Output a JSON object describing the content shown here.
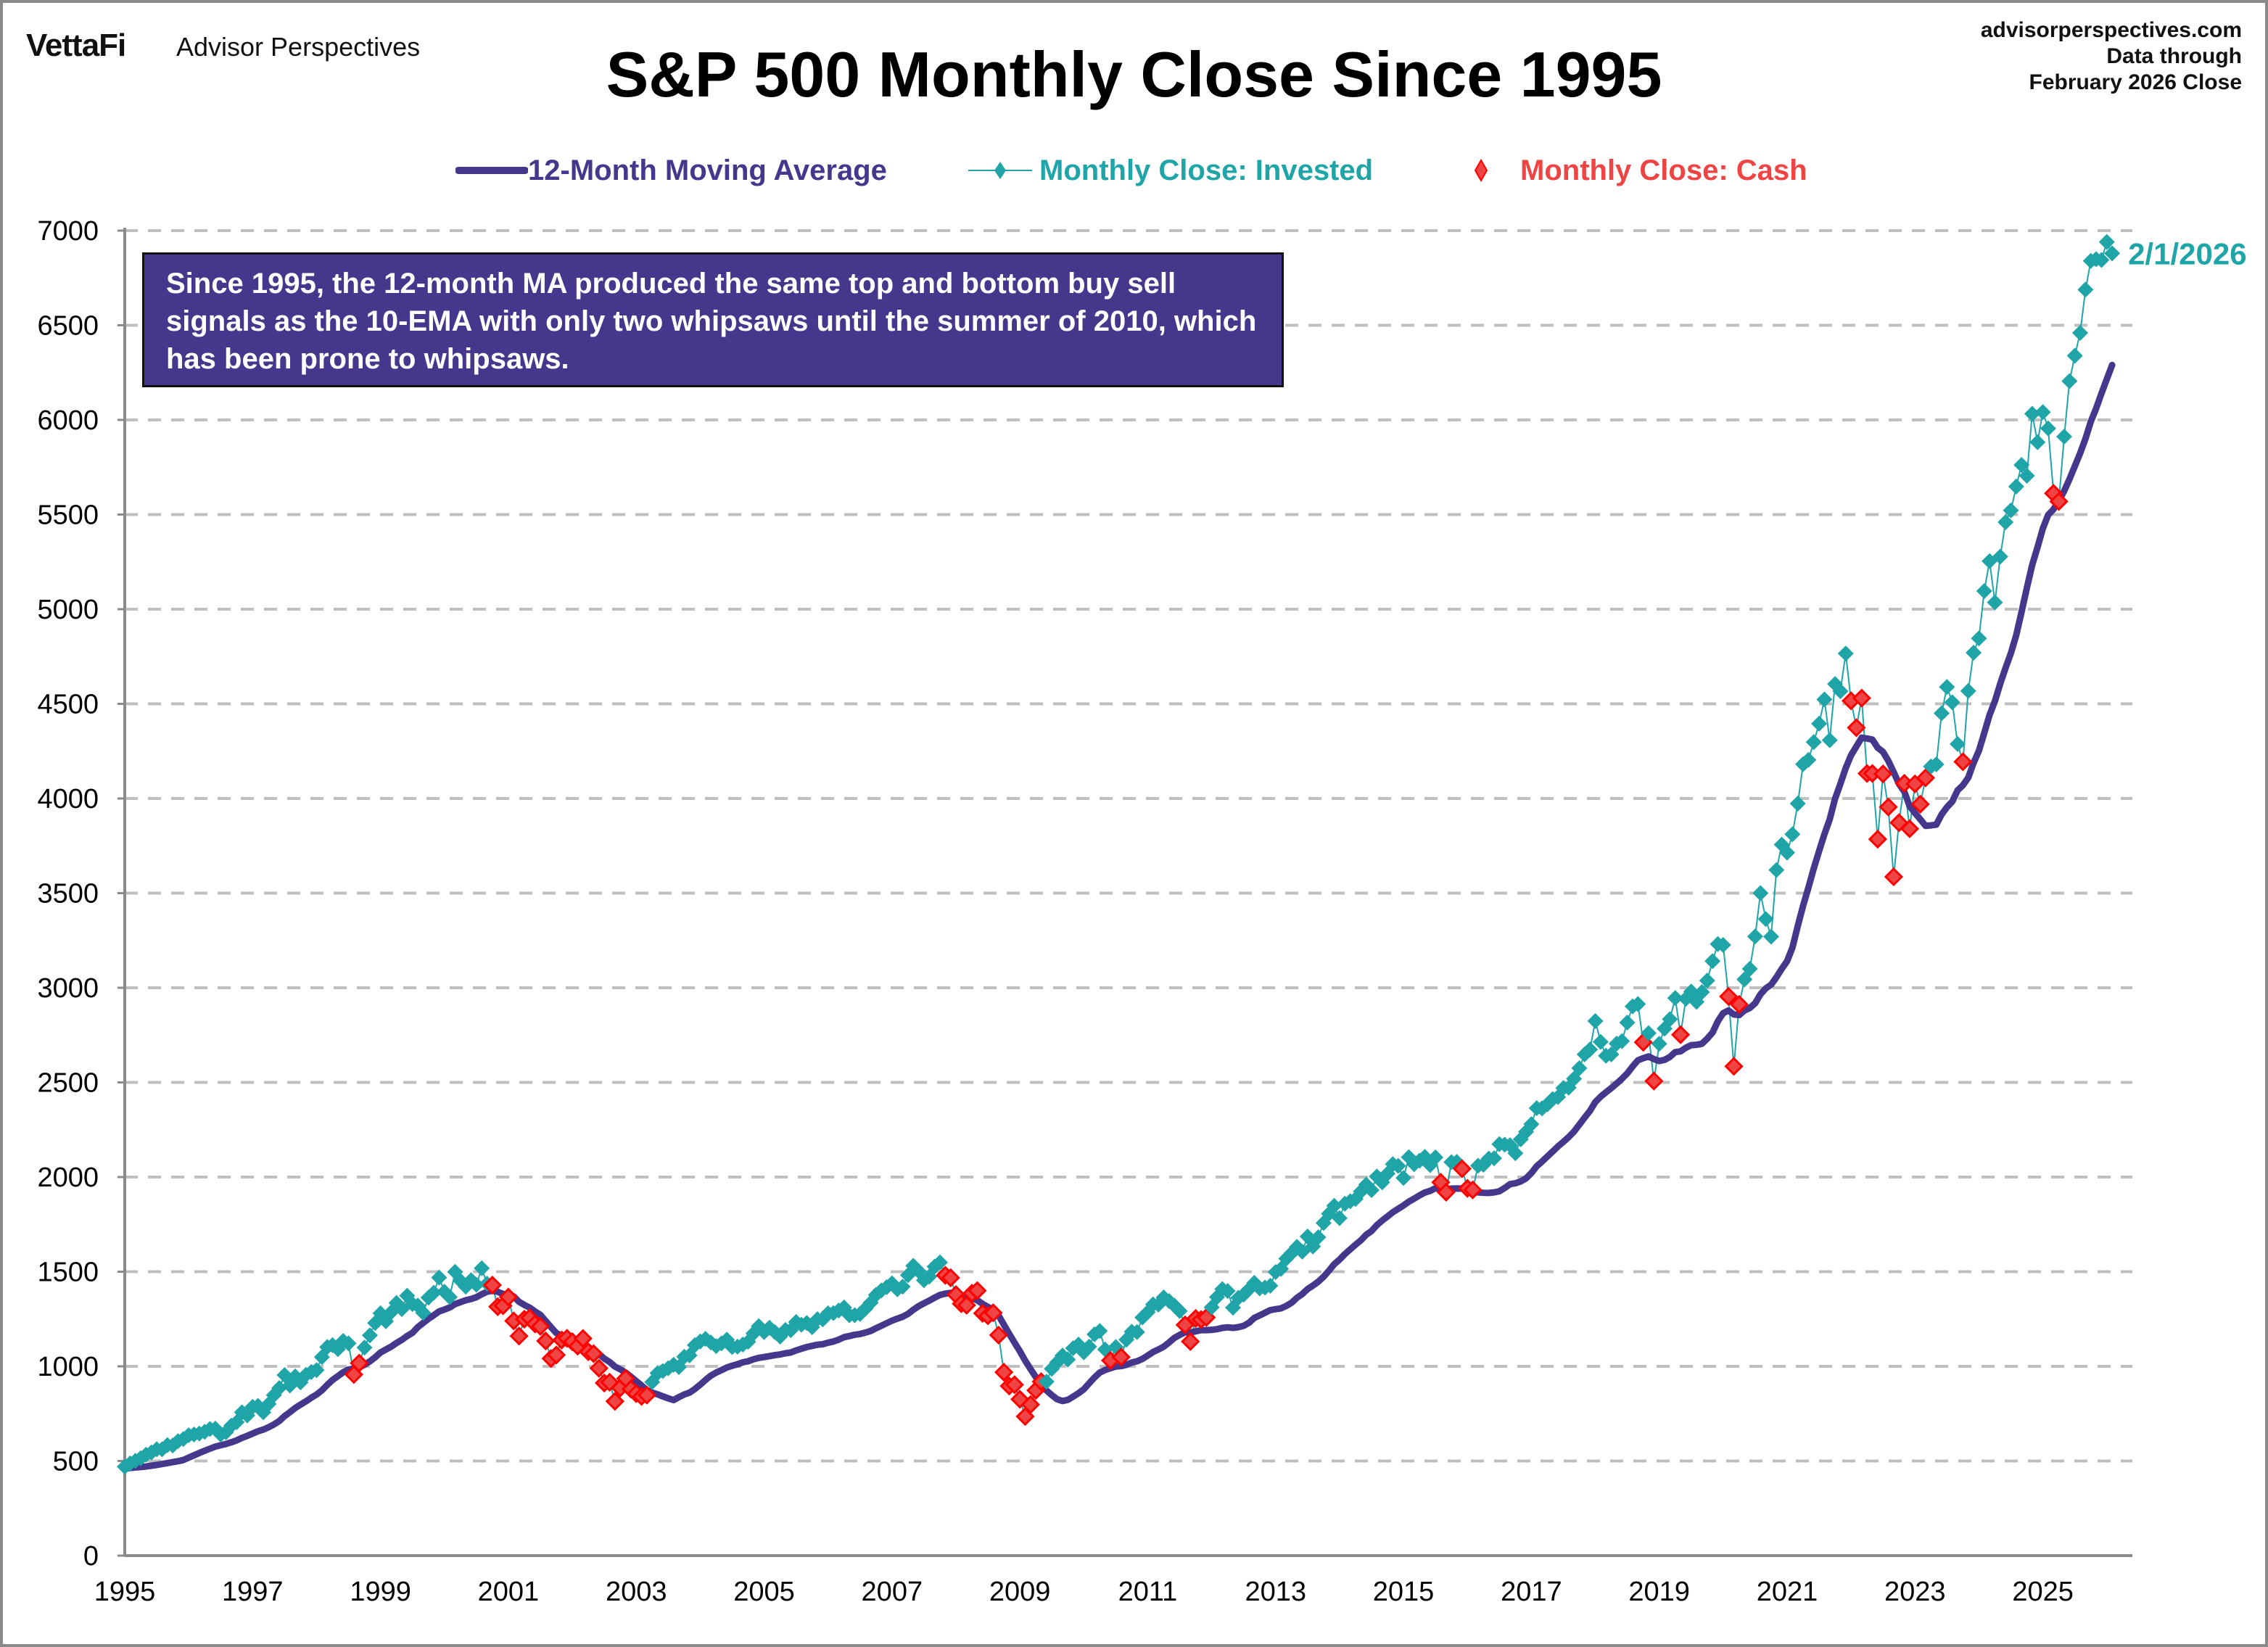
{
  "header": {
    "brand": "VettaFi",
    "brand_sub": "Advisor Perspectives",
    "source_lines": [
      "advisorperspectives.com",
      "Data through",
      "February 2026 Close"
    ]
  },
  "annotation": "Since 1995, the 12-month MA produced the same top and bottom buy sell signals as the 10-EMA with only two whipsaws until the summer of 2010, which has been prone to whipsaws.",
  "colors": {
    "ma": "#46368C",
    "invested": "#1FA5A8",
    "cash_fill": "#EF4444",
    "cash_edge": "#FF0000",
    "grid": "#BFBFBF",
    "axis": "#8A8A8A"
  },
  "chart_data": {
    "type": "line",
    "title": "S&P 500 Monthly Close Since 1995",
    "xlabel": "",
    "ylabel": "",
    "ylim": [
      0,
      7000
    ],
    "yticks": [
      0,
      500,
      1000,
      1500,
      2000,
      2500,
      3000,
      3500,
      4000,
      4500,
      5000,
      5500,
      6000,
      6500,
      7000
    ],
    "xlim": [
      1995.0,
      2026.4
    ],
    "xticks": [
      "1995",
      "1997",
      "1999",
      "2001",
      "2003",
      "2005",
      "2007",
      "2009",
      "2011",
      "2013",
      "2015",
      "2017",
      "2019",
      "2021",
      "2023",
      "2025"
    ],
    "grid": "horizontal-dashed",
    "legend_position": "top-center",
    "legend": [
      "12-Month Moving Average",
      "Monthly Close: Invested",
      "Monthly Close: Cash"
    ],
    "end_label": "2/1/2026",
    "start": "1995-01",
    "closes": [
      470,
      487,
      501,
      515,
      533,
      545,
      562,
      562,
      584,
      582,
      605,
      616,
      636,
      640,
      645,
      654,
      669,
      671,
      640,
      652,
      687,
      705,
      757,
      741,
      786,
      791,
      757,
      801,
      848,
      885,
      954,
      899,
      947,
      915,
      955,
      970,
      980,
      1049,
      1102,
      1112,
      1091,
      1134,
      1121,
      957,
      1017,
      1099,
      1164,
      1229,
      1280,
      1238,
      1286,
      1335,
      1302,
      1373,
      1329,
      1321,
      1283,
      1363,
      1389,
      1469,
      1394,
      1366,
      1499,
      1452,
      1421,
      1455,
      1431,
      1518,
      1437,
      1429,
      1315,
      1320,
      1366,
      1240,
      1160,
      1249,
      1256,
      1224,
      1211,
      1134,
      1041,
      1060,
      1139,
      1148,
      1130,
      1107,
      1147,
      1077,
      1067,
      990,
      912,
      916,
      815,
      886,
      936,
      880,
      856,
      841,
      848,
      917,
      964,
      975,
      990,
      1008,
      996,
      1051,
      1058,
      1112,
      1131,
      1145,
      1126,
      1107,
      1121,
      1141,
      1102,
      1104,
      1115,
      1130,
      1174,
      1212,
      1181,
      1204,
      1181,
      1157,
      1192,
      1191,
      1234,
      1220,
      1229,
      1207,
      1249,
      1248,
      1280,
      1281,
      1295,
      1311,
      1270,
      1270,
      1277,
      1304,
      1336,
      1378,
      1401,
      1418,
      1438,
      1407,
      1421,
      1482,
      1531,
      1503,
      1455,
      1474,
      1527,
      1549,
      1481,
      1468,
      1379,
      1331,
      1323,
      1386,
      1400,
      1280,
      1267,
      1283,
      1165,
      969,
      896,
      903,
      826,
      735,
      798,
      873,
      919,
      919,
      987,
      1021,
      1057,
      1036,
      1096,
      1115,
      1074,
      1104,
      1169,
      1187,
      1089,
      1031,
      1102,
      1049,
      1141,
      1183,
      1181,
      1258,
      1286,
      1327,
      1326,
      1364,
      1345,
      1321,
      1292,
      1219,
      1131,
      1253,
      1247,
      1258,
      1312,
      1366,
      1408,
      1398,
      1310,
      1362,
      1379,
      1407,
      1441,
      1412,
      1416,
      1426,
      1498,
      1515,
      1569,
      1598,
      1631,
      1606,
      1686,
      1633,
      1682,
      1757,
      1806,
      1848,
      1783,
      1859,
      1872,
      1884,
      1924,
      1960,
      1931,
      2003,
      1972,
      2018,
      2068,
      2059,
      1995,
      2105,
      2068,
      2086,
      2107,
      2063,
      2104,
      1972,
      1920,
      2079,
      2080,
      2044,
      1940,
      1932,
      2060,
      2065,
      2097,
      2099,
      2174,
      2171,
      2168,
      2126,
      2199,
      2239,
      2279,
      2364,
      2363,
      2384,
      2412,
      2423,
      2470,
      2472,
      2519,
      2575,
      2648,
      2674,
      2824,
      2714,
      2641,
      2648,
      2705,
      2718,
      2816,
      2902,
      2914,
      2712,
      2760,
      2507,
      2704,
      2784,
      2834,
      2946,
      2752,
      2942,
      2980,
      2926,
      2977,
      3038,
      3141,
      3231,
      3226,
      2954,
      2585,
      2912,
      3044,
      3100,
      3271,
      3500,
      3363,
      3270,
      3622,
      3756,
      3714,
      3811,
      3973,
      4181,
      4204,
      4298,
      4395,
      4523,
      4308,
      4605,
      4567,
      4766,
      4516,
      4374,
      4530,
      4132,
      4132,
      3785,
      4130,
      3955,
      3586,
      3872,
      4080,
      3840,
      4077,
      3970,
      4109,
      4169,
      4180,
      4450,
      4589,
      4508,
      4288,
      4194,
      4568,
      4770,
      4846,
      5096,
      5254,
      5036,
      5278,
      5460,
      5522,
      5648,
      5762,
      5705,
      6032,
      5882,
      6041,
      5955,
      5612,
      5569,
      5912,
      6205,
      6339,
      6460,
      6688,
      6840,
      6849,
      6845,
      6940,
      6880
    ],
    "ma": [
      461,
      463,
      466,
      468,
      471,
      475,
      479,
      484,
      489,
      494,
      499,
      505,
      518,
      530,
      542,
      554,
      565,
      576,
      583,
      590,
      599,
      609,
      622,
      633,
      645,
      657,
      666,
      678,
      693,
      711,
      737,
      758,
      780,
      798,
      815,
      834,
      851,
      873,
      902,
      928,
      948,
      969,
      983,
      988,
      994,
      1009,
      1026,
      1048,
      1073,
      1089,
      1104,
      1123,
      1140,
      1160,
      1177,
      1207,
      1229,
      1251,
      1270,
      1290,
      1300,
      1311,
      1329,
      1339,
      1349,
      1356,
      1365,
      1381,
      1394,
      1400,
      1394,
      1382,
      1380,
      1369,
      1341,
      1324,
      1310,
      1290,
      1272,
      1240,
      1207,
      1176,
      1161,
      1147,
      1127,
      1116,
      1115,
      1100,
      1085,
      1066,
      1041,
      1023,
      999,
      984,
      967,
      945,
      922,
      899,
      874,
      861,
      852,
      841,
      831,
      822,
      837,
      851,
      861,
      880,
      903,
      928,
      951,
      967,
      980,
      994,
      1003,
      1011,
      1021,
      1027,
      1037,
      1045,
      1049,
      1054,
      1059,
      1063,
      1069,
      1073,
      1084,
      1093,
      1102,
      1108,
      1114,
      1117,
      1125,
      1131,
      1141,
      1154,
      1160,
      1167,
      1171,
      1178,
      1187,
      1201,
      1214,
      1228,
      1241,
      1252,
      1262,
      1277,
      1299,
      1318,
      1333,
      1347,
      1363,
      1377,
      1384,
      1388,
      1383,
      1376,
      1368,
      1360,
      1349,
      1330,
      1314,
      1299,
      1269,
      1220,
      1172,
      1125,
      1080,
      1030,
      986,
      943,
      903,
      872,
      848,
      826,
      817,
      823,
      840,
      858,
      879,
      910,
      941,
      967,
      981,
      990,
      999,
      1001,
      1008,
      1020,
      1027,
      1039,
      1057,
      1076,
      1089,
      1104,
      1126,
      1150,
      1166,
      1180,
      1179,
      1185,
      1191,
      1191,
      1193,
      1196,
      1203,
      1206,
      1203,
      1207,
      1214,
      1230,
      1256,
      1269,
      1283,
      1297,
      1302,
      1306,
      1319,
      1336,
      1362,
      1382,
      1408,
      1427,
      1447,
      1473,
      1505,
      1540,
      1564,
      1593,
      1618,
      1642,
      1666,
      1695,
      1715,
      1746,
      1770,
      1792,
      1814,
      1832,
      1850,
      1870,
      1886,
      1903,
      1918,
      1927,
      1941,
      1938,
      1934,
      1939,
      1940,
      1939,
      1934,
      1920,
      1919,
      1917,
      1916,
      1919,
      1925,
      1942,
      1963,
      1967,
      1977,
      1993,
      2021,
      2057,
      2082,
      2109,
      2135,
      2162,
      2186,
      2211,
      2240,
      2277,
      2314,
      2350,
      2396,
      2425,
      2448,
      2470,
      2494,
      2519,
      2548,
      2584,
      2617,
      2628,
      2637,
      2623,
      2613,
      2619,
      2635,
      2660,
      2664,
      2683,
      2697,
      2699,
      2704,
      2731,
      2763,
      2823,
      2866,
      2880,
      2859,
      2856,
      2880,
      2893,
      2918,
      2965,
      2997,
      3016,
      3056,
      3100,
      3141,
      3212,
      3327,
      3433,
      3530,
      3630,
      3723,
      3811,
      3890,
      3999,
      4077,
      4161,
      4228,
      4275,
      4321,
      4317,
      4311,
      4268,
      4246,
      4199,
      4139,
      4077,
      4036,
      3959,
      3923,
      3890,
      3855,
      3858,
      3862,
      3916,
      3954,
      3984,
      4043,
      4070,
      4110,
      4188,
      4252,
      4346,
      4441,
      4514,
      4606,
      4690,
      4768,
      4863,
      4986,
      5112,
      5234,
      5327,
      5427,
      5498,
      5528,
      5572,
      5625,
      5687,
      5756,
      5824,
      5901,
      5991,
      6060,
      6140,
      6215,
      6290
    ],
    "cash_months": [
      "1998-08",
      "1998-09",
      "2000-10",
      "2000-11",
      "2000-12",
      "2001-01",
      "2001-02",
      "2001-03",
      "2001-04",
      "2001-05",
      "2001-06",
      "2001-07",
      "2001-08",
      "2001-09",
      "2001-10",
      "2001-11",
      "2001-12",
      "2002-01",
      "2002-02",
      "2002-03",
      "2002-04",
      "2002-05",
      "2002-06",
      "2002-07",
      "2002-08",
      "2002-09",
      "2002-10",
      "2002-11",
      "2002-12",
      "2003-01",
      "2003-02",
      "2003-03",
      "2007-11",
      "2007-12",
      "2008-01",
      "2008-02",
      "2008-03",
      "2008-04",
      "2008-05",
      "2008-06",
      "2008-07",
      "2008-08",
      "2008-09",
      "2008-10",
      "2008-11",
      "2008-12",
      "2009-01",
      "2009-02",
      "2009-03",
      "2009-04",
      "2009-05",
      "2010-06",
      "2010-08",
      "2011-08",
      "2011-09",
      "2011-10",
      "2011-11",
      "2011-12",
      "2015-08",
      "2015-09",
      "2015-12",
      "2016-01",
      "2016-02",
      "2018-10",
      "2018-12",
      "2019-05",
      "2020-02",
      "2020-03",
      "2020-04",
      "2022-01",
      "2022-02",
      "2022-03",
      "2022-04",
      "2022-05",
      "2022-06",
      "2022-07",
      "2022-08",
      "2022-09",
      "2022-10",
      "2022-11",
      "2022-12",
      "2023-01",
      "2023-02",
      "2023-03",
      "2023-10",
      "2025-03",
      "2025-04"
    ]
  }
}
